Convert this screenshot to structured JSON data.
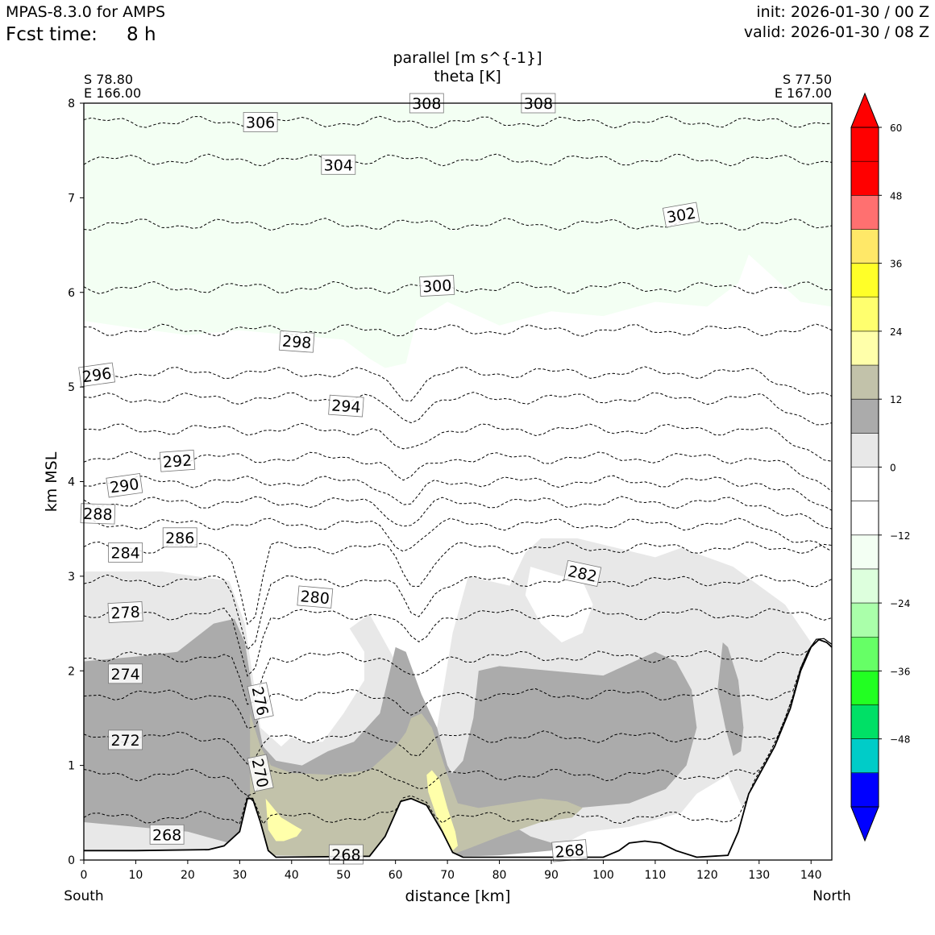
{
  "header": {
    "model": "MPAS-8.3.0 for AMPS",
    "fcst_label": "Fcst time:",
    "fcst_value": "8 h",
    "init": "init: 2026-01-30 / 00 Z",
    "valid": "valid: 2026-01-30 / 08 Z"
  },
  "chart_data": {
    "type": "contour",
    "title": "parallel [m s^{-1}]",
    "subtitle": "theta [K]",
    "xlabel": "distance [km]",
    "ylabel": "km MSL",
    "xlim": [
      0,
      144
    ],
    "ylim": [
      0,
      8
    ],
    "xticks": [
      0,
      10,
      20,
      30,
      40,
      50,
      60,
      70,
      80,
      90,
      100,
      110,
      120,
      130,
      140
    ],
    "yticks": [
      0,
      1,
      2,
      3,
      4,
      5,
      6,
      7,
      8
    ],
    "start_point": {
      "lat": "S 78.80",
      "lon": "E 166.00",
      "end_label": "South"
    },
    "end_point": {
      "lat": "S 77.50",
      "lon": "E 167.00",
      "end_label": "North"
    },
    "terrain_km": [
      [
        0,
        0.1
      ],
      [
        10,
        0.1
      ],
      [
        24,
        0.11
      ],
      [
        27,
        0.15
      ],
      [
        30,
        0.3
      ],
      [
        31.5,
        0.65
      ],
      [
        32.5,
        0.65
      ],
      [
        34,
        0.4
      ],
      [
        35.5,
        0.1
      ],
      [
        37,
        0.03
      ],
      [
        55,
        0.04
      ],
      [
        58,
        0.25
      ],
      [
        61,
        0.62
      ],
      [
        63,
        0.65
      ],
      [
        66,
        0.58
      ],
      [
        69,
        0.3
      ],
      [
        71,
        0.08
      ],
      [
        73,
        0.03
      ],
      [
        100,
        0.03
      ],
      [
        103,
        0.1
      ],
      [
        105,
        0.18
      ],
      [
        108,
        0.2
      ],
      [
        111,
        0.18
      ],
      [
        114,
        0.1
      ],
      [
        118,
        0.03
      ],
      [
        124,
        0.05
      ],
      [
        126,
        0.3
      ],
      [
        128,
        0.7
      ],
      [
        130,
        0.9
      ],
      [
        133,
        1.2
      ],
      [
        136,
        1.6
      ],
      [
        138,
        2.0
      ],
      [
        140,
        2.25
      ],
      [
        141.5,
        2.33
      ],
      [
        143,
        2.3
      ],
      [
        144,
        2.25
      ]
    ],
    "theta_labels": [
      {
        "text": "308",
        "x": 66,
        "y": 8.0,
        "rot": 0
      },
      {
        "text": "308",
        "x": 87.5,
        "y": 8.0,
        "rot": 0
      },
      {
        "text": "306",
        "x": 34,
        "y": 7.8,
        "rot": 0
      },
      {
        "text": "304",
        "x": 49,
        "y": 7.35,
        "rot": 0
      },
      {
        "text": "302",
        "x": 115,
        "y": 6.82,
        "rot": -10
      },
      {
        "text": "300",
        "x": 68,
        "y": 6.07,
        "rot": -3
      },
      {
        "text": "298",
        "x": 41,
        "y": 5.48,
        "rot": 4
      },
      {
        "text": "296",
        "x": 2.5,
        "y": 5.13,
        "rot": -8
      },
      {
        "text": "294",
        "x": 50.5,
        "y": 4.8,
        "rot": 4
      },
      {
        "text": "292",
        "x": 18,
        "y": 4.22,
        "rot": -4
      },
      {
        "text": "290",
        "x": 7.8,
        "y": 3.96,
        "rot": -8
      },
      {
        "text": "288",
        "x": 2.7,
        "y": 3.66,
        "rot": 2
      },
      {
        "text": "286",
        "x": 18.5,
        "y": 3.41,
        "rot": 0
      },
      {
        "text": "284",
        "x": 8,
        "y": 3.25,
        "rot": 0
      },
      {
        "text": "282",
        "x": 96,
        "y": 3.03,
        "rot": 12
      },
      {
        "text": "280",
        "x": 44.5,
        "y": 2.78,
        "rot": 5
      },
      {
        "text": "278",
        "x": 8,
        "y": 2.62,
        "rot": -3
      },
      {
        "text": "276",
        "x": 34,
        "y": 1.68,
        "rot": 78
      },
      {
        "text": "274",
        "x": 8,
        "y": 1.97,
        "rot": 0
      },
      {
        "text": "272",
        "x": 8,
        "y": 1.27,
        "rot": 0
      },
      {
        "text": "270",
        "x": 34,
        "y": 0.92,
        "rot": 78
      },
      {
        "text": "268",
        "x": 16,
        "y": 0.27,
        "rot": 0
      },
      {
        "text": "268",
        "x": 50.5,
        "y": 0.06,
        "rot": 0
      },
      {
        "text": "268",
        "x": 93.5,
        "y": 0.1,
        "rot": -5
      }
    ],
    "colorbar": {
      "ticks": [
        "60",
        "48",
        "36",
        "24",
        "12",
        "0",
        "−12",
        "−24",
        "−36",
        "−48"
      ],
      "min": -60,
      "max": 60,
      "step": 6,
      "colors": [
        "#0000ff",
        "#00ccc8",
        "#00e066",
        "#22ff22",
        "#66ff66",
        "#aaffaa",
        "#ddffdd",
        "#f3fff3",
        "#ffffff",
        "#ffffff",
        "#e8e8e8",
        "#ababab",
        "#c2c2aa",
        "#ffffaa",
        "#ffff6e",
        "#ffff28",
        "#ffe868",
        "#ff7070",
        "#ff0000",
        "#ff0000"
      ],
      "under_color": "#0000ff",
      "over_color": "#ff0000"
    }
  }
}
